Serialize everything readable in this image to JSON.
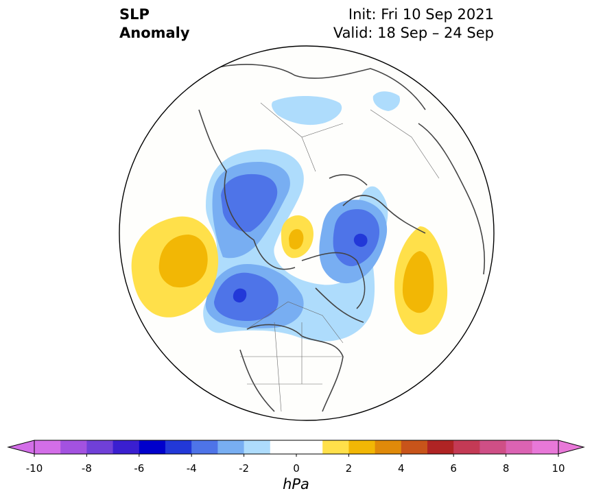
{
  "title": {
    "left_line1": "SLP",
    "left_line2": "Anomaly",
    "right_line1": "Init: Fri 10 Sep 2021",
    "right_line2": "Valid: 18 Sep – 24 Sep"
  },
  "colorbar": {
    "units": "hPa",
    "ticks": [
      "-10",
      "-8",
      "-6",
      "-4",
      "-2",
      "0",
      "2",
      "4",
      "6",
      "8",
      "10"
    ],
    "colors": [
      "#d36ee8",
      "#a352e0",
      "#7040d8",
      "#3a1fd0",
      "#0000cc",
      "#2238d8",
      "#4e74e8",
      "#78aef2",
      "#aedcfc",
      "#ffffff",
      "#ffffff",
      "#ffe04a",
      "#f2b705",
      "#e08a0a",
      "#c8541a",
      "#b02424",
      "#c43a55",
      "#cf4f86",
      "#db63b3",
      "#e878d8"
    ],
    "extend_low": "#d36ee8",
    "extend_high": "#e878d8"
  },
  "anomaly_colors": {
    "neg1": "#aedcfc",
    "neg2": "#78aef2",
    "neg3": "#4e74e8",
    "neg4": "#2238d8",
    "pos1": "#ffe04a",
    "pos2": "#f2b705"
  }
}
